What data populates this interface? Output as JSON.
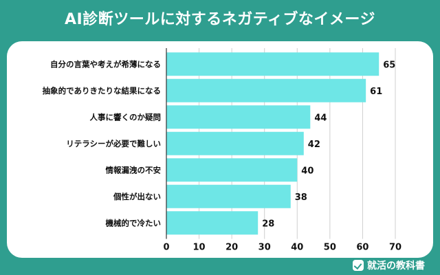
{
  "title": "AI診断ツールに対するネガティブなイメージ",
  "brand": {
    "label": "就活の教科書",
    "icon": "checkmark-book-icon"
  },
  "colors": {
    "background": "#2f9e8f",
    "bar": "#6ee6e6",
    "grid": "#cfcfcf",
    "text": "#111111"
  },
  "chart_data": {
    "type": "bar",
    "orientation": "horizontal",
    "categories": [
      "自分の言葉や考えが希薄になる",
      "抽象的でありきたりな結果になる",
      "人事に響くのか疑問",
      "リテラシーが必要で難しい",
      "情報漏洩の不安",
      "個性が出ない",
      "機械的で冷たい"
    ],
    "values": [
      65,
      61,
      44,
      42,
      40,
      38,
      28
    ],
    "xlim": [
      0,
      70
    ],
    "xticks": [
      0,
      10,
      20,
      30,
      40,
      50,
      60,
      70
    ],
    "grid": true,
    "title": "",
    "xlabel": "",
    "ylabel": ""
  }
}
